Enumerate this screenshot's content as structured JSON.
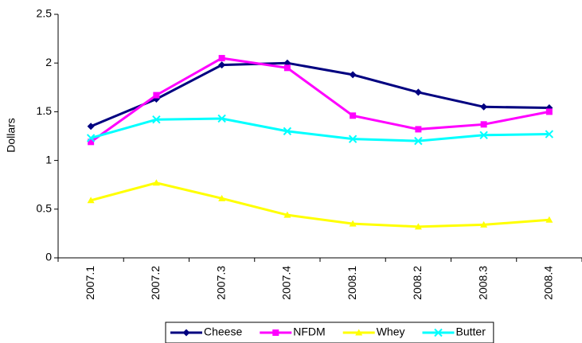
{
  "chart_data": {
    "type": "line",
    "y_label": "Dollars",
    "categories": [
      "2007.1",
      "2007.2",
      "2007.3",
      "2007.4",
      "2008.1",
      "2008.2",
      "2008.3",
      "2008.4"
    ],
    "series": [
      {
        "name": "Cheese",
        "color": "#000080",
        "marker": "diamond",
        "values": [
          1.35,
          1.63,
          1.98,
          2.0,
          1.88,
          1.7,
          1.55,
          1.54
        ]
      },
      {
        "name": "NFDM",
        "color": "#ff00ff",
        "marker": "square",
        "values": [
          1.19,
          1.67,
          2.05,
          1.95,
          1.46,
          1.32,
          1.37,
          1.5
        ]
      },
      {
        "name": "Whey",
        "color": "#ffff00",
        "marker": "triangle",
        "values": [
          0.59,
          0.77,
          0.61,
          0.44,
          0.35,
          0.32,
          0.34,
          0.39
        ]
      },
      {
        "name": "Butter",
        "color": "#00ffff",
        "marker": "x",
        "values": [
          1.23,
          1.42,
          1.43,
          1.3,
          1.22,
          1.2,
          1.26,
          1.27
        ]
      }
    ],
    "ylim": [
      0,
      2.5
    ],
    "yticks": [
      0,
      0.5,
      1,
      1.5,
      2,
      2.5
    ],
    "grid": false,
    "legend": "bottom"
  }
}
